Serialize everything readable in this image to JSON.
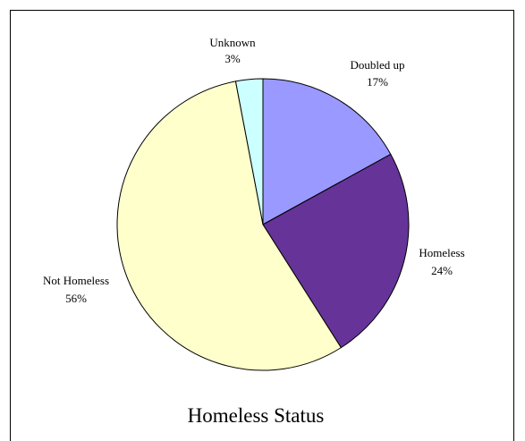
{
  "chart_data": {
    "type": "pie",
    "title": "Homeless Status",
    "slices": [
      {
        "label": "Doubled up",
        "value_label": "17%",
        "value": 17,
        "color": "#9999ff"
      },
      {
        "label": "Homeless",
        "value_label": "24%",
        "value": 24,
        "color": "#663399"
      },
      {
        "label": "Not Homeless",
        "value_label": "56%",
        "value": 56,
        "color": "#ffffcc"
      },
      {
        "label": "Unknown",
        "value_label": "3%",
        "value": 3,
        "color": "#ccffff"
      }
    ]
  }
}
